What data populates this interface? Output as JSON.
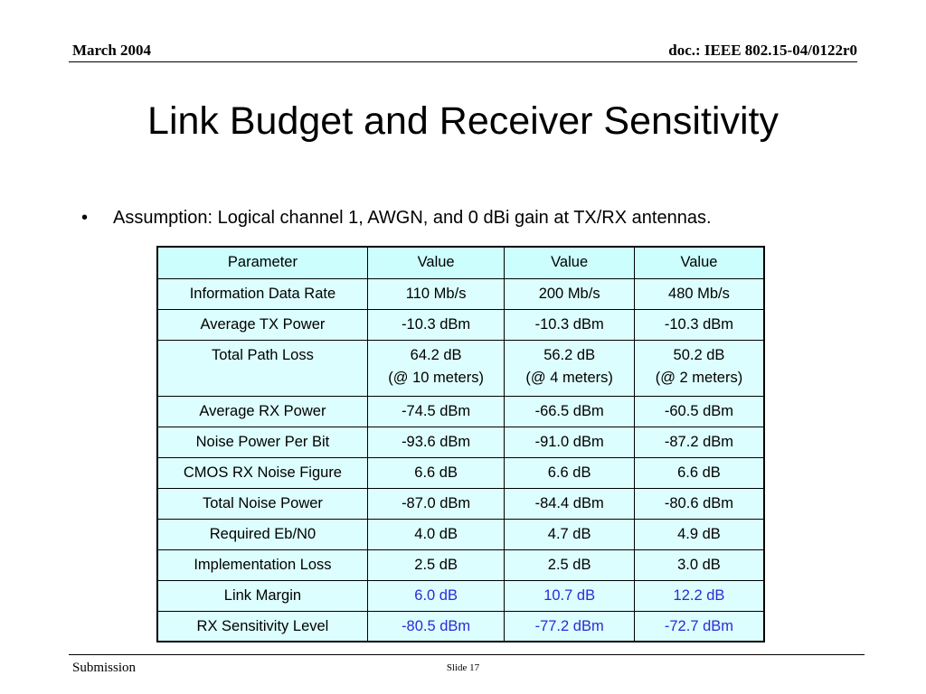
{
  "header": {
    "date": "March 2004",
    "doc_id": "doc.: IEEE 802.15-04/0122r0"
  },
  "slide": {
    "title": "Link Budget and Receiver Sensitivity",
    "bullet": "Assumption: Logical channel 1, AWGN, and 0 dBi gain at TX/RX antennas."
  },
  "table": {
    "headers": [
      "Parameter",
      "Value",
      "Value",
      "Value"
    ],
    "rows": [
      {
        "param": "Information Data Rate",
        "v1": "110 Mb/s",
        "v2": "200 Mb/s",
        "v3": "480 Mb/s"
      },
      {
        "param": "Average TX Power",
        "v1": "-10.3 dBm",
        "v2": "-10.3 dBm",
        "v3": "-10.3 dBm"
      },
      {
        "param": "Total Path Loss",
        "v1": "64.2 dB",
        "v2": "56.2 dB",
        "v3": "50.2 dB",
        "s1": "(@ 10 meters)",
        "s2": "(@ 4 meters)",
        "s3": "(@ 2 meters)"
      },
      {
        "param": "Average RX Power",
        "v1": "-74.5 dBm",
        "v2": "-66.5 dBm",
        "v3": "-60.5 dBm"
      },
      {
        "param": "Noise Power Per Bit",
        "v1": "-93.6 dBm",
        "v2": "-91.0 dBm",
        "v3": "-87.2 dBm"
      },
      {
        "param": "CMOS RX Noise Figure",
        "v1": "6.6 dB",
        "v2": "6.6 dB",
        "v3": "6.6 dB"
      },
      {
        "param": "Total Noise Power",
        "v1": "-87.0 dBm",
        "v2": "-84.4 dBm",
        "v3": "-80.6 dBm"
      },
      {
        "param": "Required Eb/N0",
        "v1": "4.0 dB",
        "v2": "4.7 dB",
        "v3": "4.9 dB"
      },
      {
        "param": "Implementation Loss",
        "v1": "2.5 dB",
        "v2": "2.5 dB",
        "v3": "3.0 dB"
      },
      {
        "param": "Link Margin",
        "v1": "6.0 dB",
        "v2": "10.7 dB",
        "v3": "12.2 dB"
      },
      {
        "param": "RX Sensitivity Level",
        "v1": "-80.5 dBm",
        "v2": "-77.2 dBm",
        "v3": "-72.7 dBm"
      }
    ]
  },
  "footer": {
    "left": "Submission",
    "slide_number": "Slide 17"
  },
  "colors": {
    "cell_background": "#ddfefe",
    "highlight_text": "#2b2bd6"
  }
}
